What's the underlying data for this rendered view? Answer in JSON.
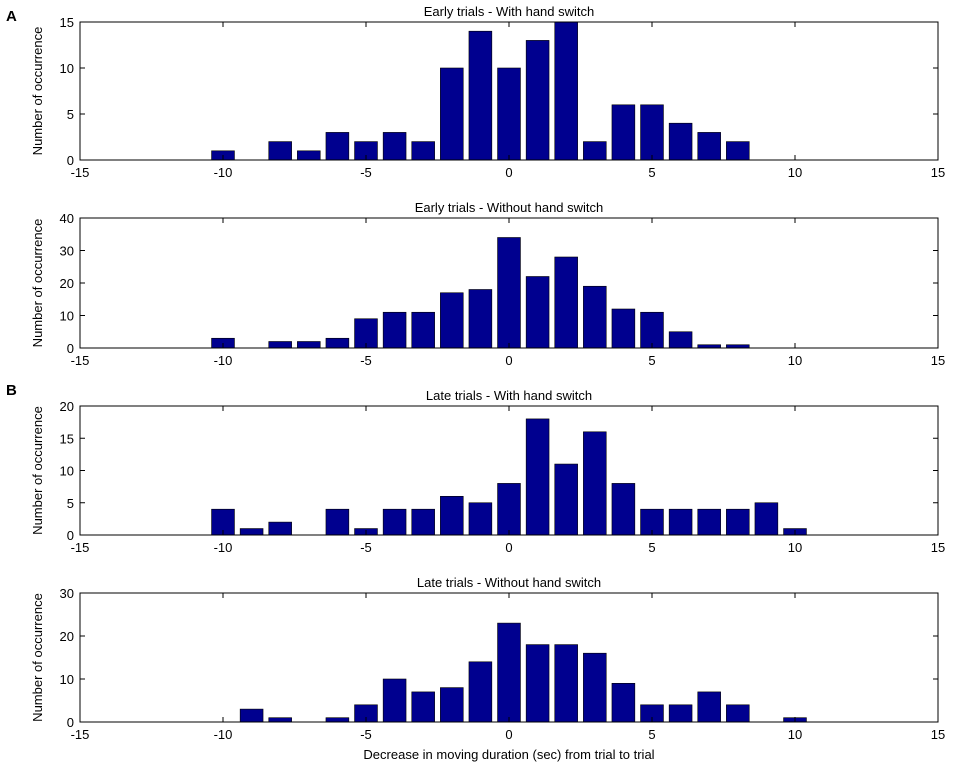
{
  "figure": {
    "colors": {
      "bar": "#00008F",
      "axis": "#000000",
      "background": "#FFFFFF"
    },
    "panel_letters": [
      "A",
      "B"
    ]
  },
  "chart_data": [
    {
      "type": "bar",
      "title": "Early trials - With hand switch",
      "xlabel": "",
      "ylabel": "Number of occurrence",
      "xlim": [
        -15,
        15
      ],
      "ylim": [
        0,
        15
      ],
      "xticks": [
        -15,
        -10,
        -5,
        0,
        5,
        10,
        15
      ],
      "yticks": [
        0,
        5,
        10,
        15
      ],
      "bin_width": 1,
      "x": [
        -10,
        -8,
        -7,
        -6,
        -5,
        -4,
        -3,
        -2,
        -1,
        0,
        1,
        2,
        3,
        4,
        5,
        6,
        7,
        8
      ],
      "values": [
        1,
        2,
        1,
        3,
        2,
        3,
        2,
        10,
        14,
        10,
        13,
        15,
        2,
        6,
        6,
        4,
        3,
        2
      ]
    },
    {
      "type": "bar",
      "title": "Early trials - Without hand switch",
      "xlabel": "",
      "ylabel": "Number of occurrence",
      "xlim": [
        -15,
        15
      ],
      "ylim": [
        0,
        40
      ],
      "xticks": [
        -15,
        -10,
        -5,
        0,
        5,
        10,
        15
      ],
      "yticks": [
        0,
        10,
        20,
        30,
        40
      ],
      "bin_width": 1,
      "x": [
        -10,
        -8,
        -7,
        -6,
        -5,
        -4,
        -3,
        -2,
        -1,
        0,
        1,
        2,
        3,
        4,
        5,
        6,
        7,
        8
      ],
      "values": [
        3,
        2,
        2,
        3,
        9,
        11,
        11,
        17,
        18,
        34,
        22,
        28,
        19,
        12,
        11,
        5,
        1,
        1
      ]
    },
    {
      "type": "bar",
      "title": "Late trials - With hand switch",
      "xlabel": "",
      "ylabel": "Number of occurrence",
      "xlim": [
        -15,
        15
      ],
      "ylim": [
        0,
        20
      ],
      "xticks": [
        -15,
        -10,
        -5,
        0,
        5,
        10,
        15
      ],
      "yticks": [
        0,
        5,
        10,
        15,
        20
      ],
      "bin_width": 1,
      "x": [
        -10,
        -9,
        -8,
        -6,
        -5,
        -4,
        -3,
        -2,
        -1,
        0,
        1,
        2,
        3,
        4,
        5,
        6,
        7,
        8,
        9,
        10
      ],
      "values": [
        4,
        1,
        2,
        4,
        1,
        4,
        4,
        6,
        5,
        8,
        18,
        11,
        16,
        8,
        4,
        4,
        4,
        4,
        5,
        1
      ]
    },
    {
      "type": "bar",
      "title": "Late trials - Without hand switch",
      "xlabel": "Decrease in moving duration (sec) from trial to trial",
      "ylabel": "Number of occurrence",
      "xlim": [
        -15,
        15
      ],
      "ylim": [
        0,
        30
      ],
      "xticks": [
        -15,
        -10,
        -5,
        0,
        5,
        10,
        15
      ],
      "yticks": [
        0,
        10,
        20,
        30
      ],
      "bin_width": 1,
      "x": [
        -9,
        -8,
        -6,
        -5,
        -4,
        -3,
        -2,
        -1,
        0,
        1,
        2,
        3,
        4,
        5,
        6,
        7,
        8,
        10
      ],
      "values": [
        3,
        1,
        1,
        4,
        10,
        7,
        8,
        14,
        23,
        18,
        18,
        16,
        9,
        4,
        4,
        7,
        4,
        1
      ]
    }
  ]
}
